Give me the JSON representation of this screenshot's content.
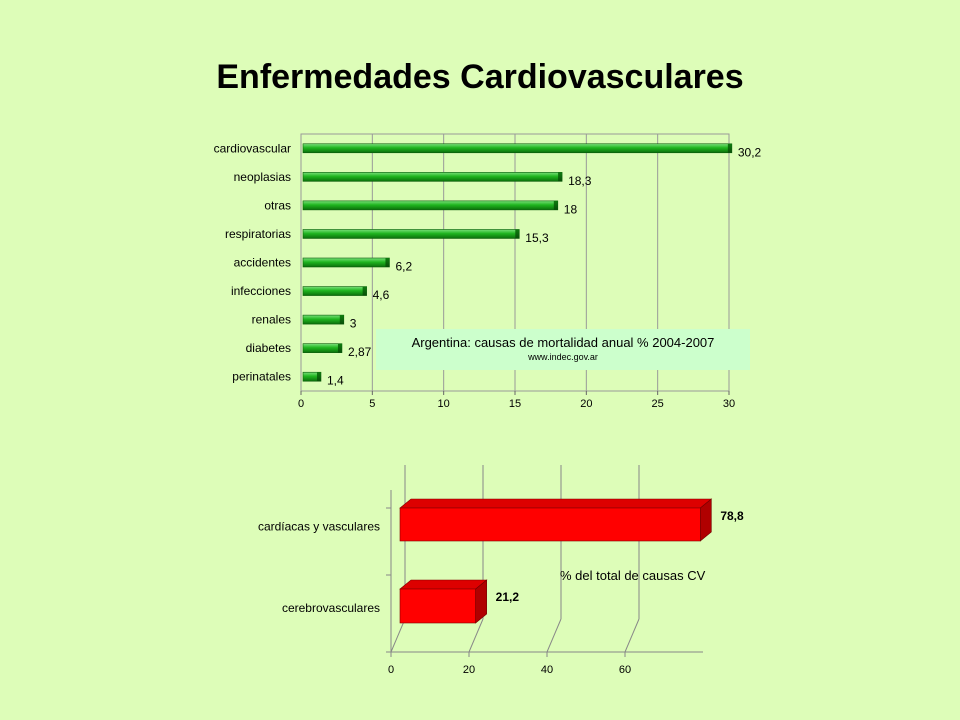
{
  "page": {
    "title": "Enfermedades Cardiovasculares"
  },
  "colors": {
    "background": "#ddfdb8",
    "green_bar": "#22aa22",
    "red_bar": "#ff0000",
    "info_box": "#ccffcc"
  },
  "chart_data": [
    {
      "type": "bar",
      "orientation": "horizontal",
      "categories": [
        "cardiovascular",
        "neoplasias",
        "otras",
        "respiratorias",
        "accidentes",
        "infecciones",
        "renales",
        "diabetes",
        "perinatales"
      ],
      "values": [
        30.2,
        18.3,
        18,
        15.3,
        6.2,
        4.6,
        3,
        2.87,
        1.4
      ],
      "value_labels": [
        "30,2",
        "18,3",
        "18",
        "15,3",
        "6,2",
        "4,6",
        "3",
        "2,87",
        "1,4"
      ],
      "xlim": [
        0,
        30
      ],
      "xticks": [
        0,
        5,
        10,
        15,
        20,
        25,
        30
      ],
      "grid": true,
      "annotation": {
        "title": "Argentina: causas de mortalidad  anual %  2004-2007",
        "source": "www.indec.gov.ar"
      }
    },
    {
      "type": "bar",
      "orientation": "horizontal",
      "style": "3d",
      "categories": [
        "cardíacas y vasculares",
        "cerebrovasculares"
      ],
      "values": [
        78.8,
        21.2
      ],
      "value_labels": [
        "78,8",
        "21,2"
      ],
      "xlim": [
        0,
        80
      ],
      "xticks": [
        0,
        20,
        40,
        60
      ],
      "grid": true,
      "annotation": "% del total de causas CV"
    }
  ]
}
